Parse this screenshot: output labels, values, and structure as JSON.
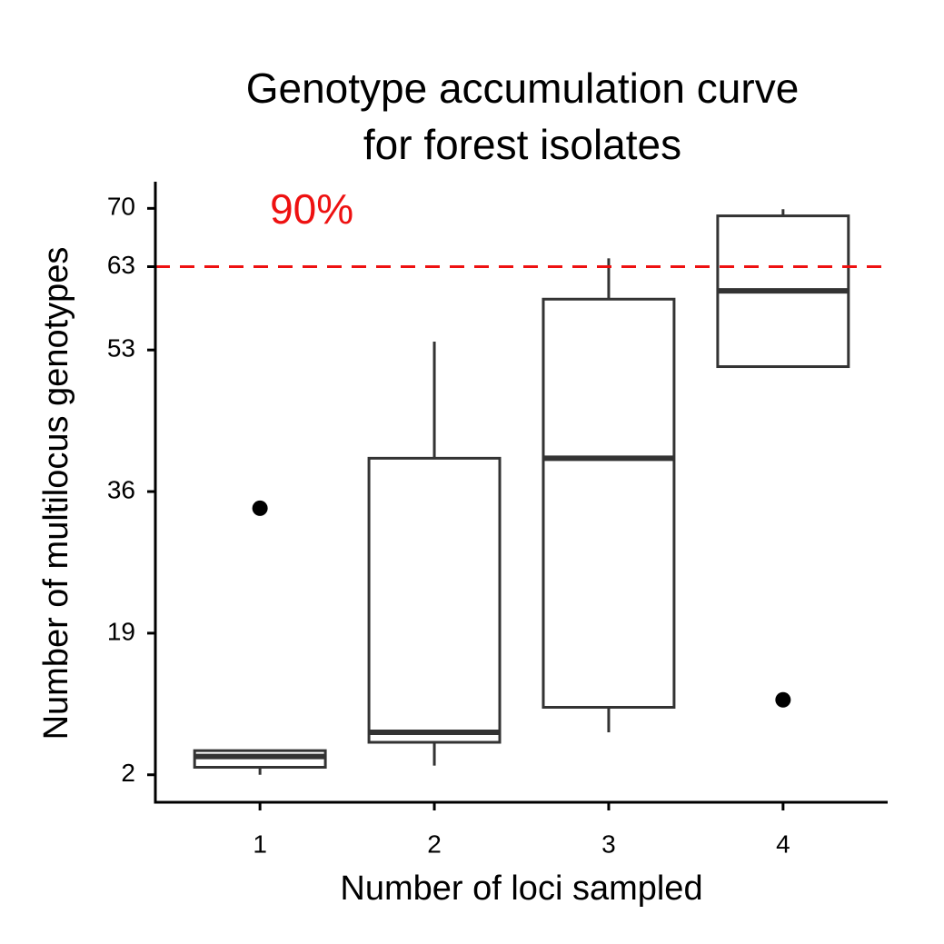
{
  "chart_data": {
    "type": "box",
    "title": [
      "Genotype accumulation curve",
      "for forest isolates"
    ],
    "x_label": "Number of loci sampled",
    "y_label": "Number of multilocus genotypes",
    "categories": [
      "1",
      "2",
      "3",
      "4"
    ],
    "boxes": [
      {
        "min": 2,
        "q1": 2.9,
        "median": 4.2,
        "q3": 4.9,
        "max": 4.9,
        "outliers": [
          34
        ]
      },
      {
        "min": 3.1,
        "q1": 5.9,
        "median": 7.1,
        "q3": 40,
        "max": 54,
        "outliers": []
      },
      {
        "min": 7.1,
        "q1": 10.1,
        "median": 40,
        "q3": 59.1,
        "max": 64,
        "outliers": []
      },
      {
        "min": 51,
        "q1": 51,
        "median": 60.1,
        "q3": 69.1,
        "max": 69.9,
        "outliers": [
          11
        ]
      }
    ],
    "color": "#333333",
    "ylim": [
      -1.3,
      73.2
    ],
    "yticks": [
      2,
      19,
      36,
      53,
      63,
      70
    ],
    "reference_line": {
      "value": 63,
      "color": "#ee1111",
      "label": "90%"
    },
    "grid": false
  }
}
